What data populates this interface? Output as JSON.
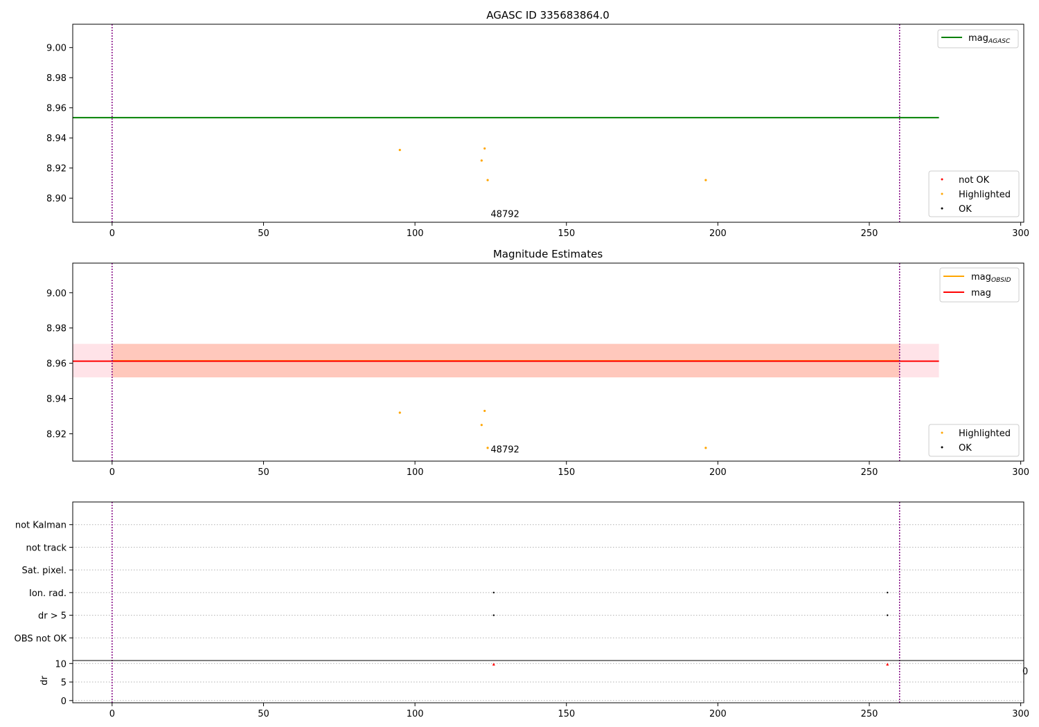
{
  "chart_data": [
    {
      "type": "scatter",
      "title": "AGASC ID 335683864.0",
      "xlim": [
        -13,
        301
      ],
      "ylim": [
        8.884,
        9.0155
      ],
      "xticks": [
        0,
        50,
        100,
        150,
        200,
        250,
        300
      ],
      "yticks": [
        8.9,
        8.92,
        8.94,
        8.96,
        8.98,
        9.0
      ],
      "ytick_labels": [
        "8.90",
        "8.92",
        "8.94",
        "8.96",
        "8.98",
        "9.00"
      ],
      "grid": false,
      "hlines": [
        {
          "name": "mag_AGASC",
          "y": 8.9535,
          "x": [
            -13,
            273
          ],
          "color": "#008000"
        }
      ],
      "vlines": [
        {
          "x": 0,
          "color": "#800080"
        },
        {
          "x": 260,
          "color": "#800080"
        }
      ],
      "annotations": [
        {
          "text": "48792",
          "x": 125,
          "y": 8.8875
        }
      ],
      "legend_upper": {
        "placement": "top-right",
        "entries": [
          {
            "label": "mag",
            "subscript": "AGASC",
            "color": "#008000"
          }
        ]
      },
      "legend_lower": {
        "placement": "bottom-right",
        "entries": [
          {
            "label": "not OK",
            "color": "#ff0000"
          },
          {
            "label": "Highlighted",
            "color": "#ffa500"
          },
          {
            "label": "OK",
            "color": "#000000"
          }
        ]
      },
      "series": [
        {
          "name": "Highlighted",
          "color": "#ffa500",
          "points": [
            [
              95,
              8.932
            ],
            [
              122,
              8.925
            ],
            [
              123,
              8.933
            ],
            [
              124,
              8.912
            ],
            [
              196,
              8.912
            ]
          ]
        }
      ]
    },
    {
      "type": "scatter",
      "title": "Magnitude Estimates",
      "xlim": [
        -13,
        301
      ],
      "ylim": [
        8.9045,
        9.0168
      ],
      "xticks": [
        0,
        50,
        100,
        150,
        200,
        250,
        300
      ],
      "yticks": [
        8.92,
        8.94,
        8.96,
        8.98,
        9.0
      ],
      "ytick_labels": [
        "8.92",
        "8.94",
        "8.96",
        "8.98",
        "9.00"
      ],
      "grid": false,
      "bands": [
        {
          "y0": 8.952,
          "y1": 8.971,
          "x": [
            -13,
            273
          ],
          "color": "#ffc0cb",
          "opacity": 0.45
        },
        {
          "y0": 8.952,
          "y1": 8.971,
          "x": [
            0,
            260
          ],
          "color": "#ffa07a",
          "opacity": 0.4
        }
      ],
      "hlines": [
        {
          "name": "mag_OBSID",
          "y": 8.9614,
          "x": [
            0,
            260
          ],
          "color": "#ffa500"
        },
        {
          "name": "mag",
          "y": 8.9612,
          "x": [
            -13,
            273
          ],
          "color": "#ff0000"
        }
      ],
      "vlines": [
        {
          "x": 0,
          "color": "#800080"
        },
        {
          "x": 260,
          "color": "#800080"
        }
      ],
      "annotations": [
        {
          "text": "48792",
          "x": 125,
          "y": 8.9095
        }
      ],
      "legend_upper": {
        "placement": "top-right",
        "entries": [
          {
            "label": "mag",
            "subscript": "OBSID",
            "color": "#ffa500"
          },
          {
            "label": "mag",
            "subscript": "",
            "color": "#ff0000"
          }
        ]
      },
      "legend_lower": {
        "placement": "bottom-right",
        "entries": [
          {
            "label": "Highlighted",
            "color": "#ffa500"
          },
          {
            "label": "OK",
            "color": "#000000"
          }
        ]
      },
      "series": [
        {
          "name": "Highlighted",
          "color": "#ffa500",
          "points": [
            [
              95,
              8.932
            ],
            [
              122,
              8.925
            ],
            [
              123,
              8.933
            ],
            [
              124,
              8.912
            ],
            [
              196,
              8.912
            ]
          ]
        }
      ]
    },
    {
      "type": "scatter",
      "title": "",
      "xlim": [
        -13,
        301
      ],
      "xticks": [
        0,
        50,
        100,
        150,
        200,
        250,
        300
      ],
      "flag_rows": [
        "not Kalman",
        "not track",
        "Sat. pixel.",
        "Ion. rad.",
        "dr > 5",
        "OBS not OK"
      ],
      "flag_points": [
        {
          "flag": "Ion. rad.",
          "x": [
            126,
            256
          ]
        },
        {
          "flag": "dr > 5",
          "x": [
            126,
            256
          ]
        }
      ],
      "dr_ylabel": "dr",
      "dr_ylim": [
        -0.6,
        10.8
      ],
      "dr_yticks": [
        0,
        5,
        10
      ],
      "dr_above_limit": [
        {
          "x": 126,
          "y": 10
        },
        {
          "x": 256,
          "y": 10
        }
      ],
      "vlines": [
        {
          "x": 0,
          "color": "#800080"
        },
        {
          "x": 260,
          "color": "#800080"
        }
      ]
    }
  ]
}
